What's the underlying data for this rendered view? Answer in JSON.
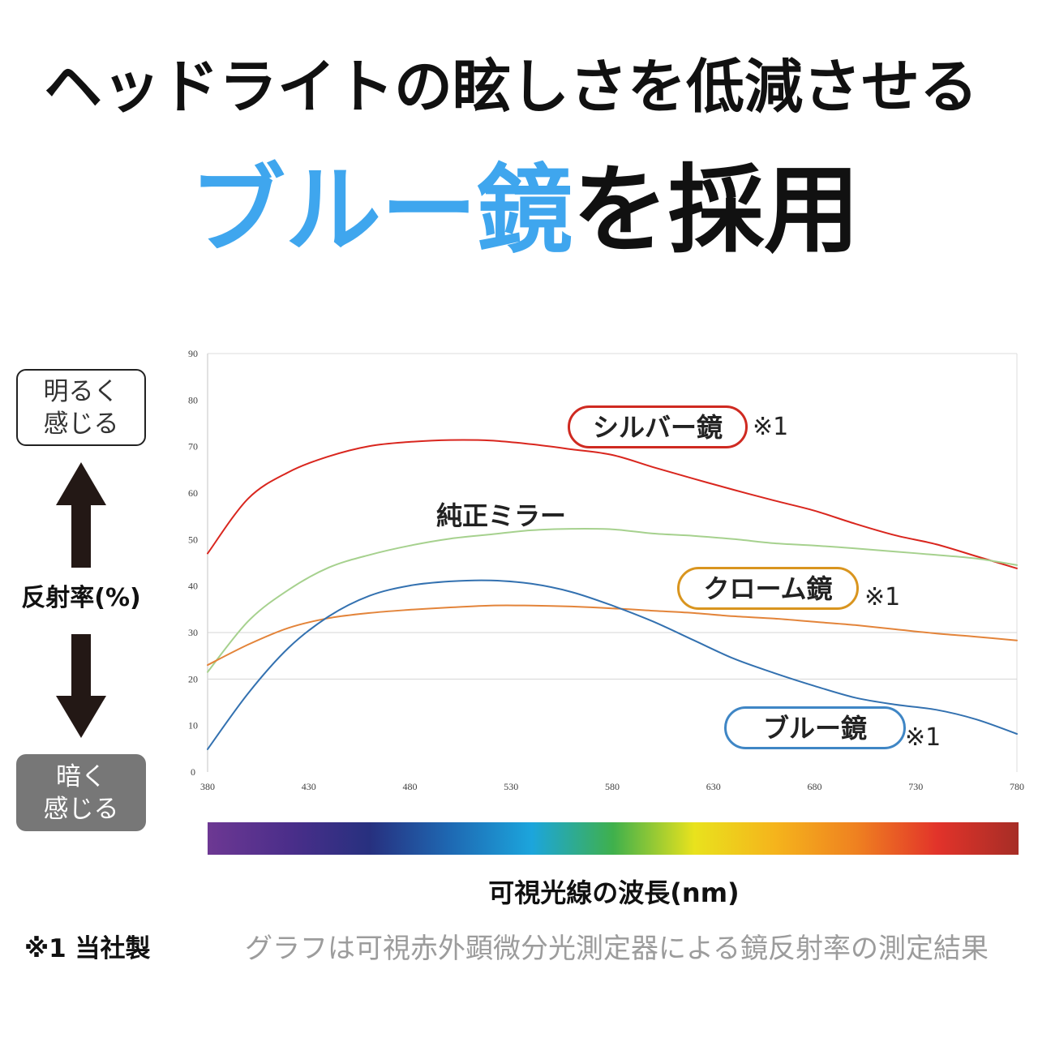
{
  "title": {
    "line1": "ヘッドライトの眩しさを低減させる",
    "line2_highlight": "ブルー鏡",
    "line2_rest": "を採用",
    "highlight_color": "#3fa6ee"
  },
  "scale": {
    "bright": [
      "明るく",
      "感じる"
    ],
    "dark": [
      "暗く",
      "感じる"
    ]
  },
  "chart_data": {
    "type": "line",
    "xlabel": "可視光線の波長(nm)",
    "ylabel": "反射率(%)",
    "xlim": [
      380,
      780
    ],
    "ylim": [
      0,
      90
    ],
    "xticks": [
      380,
      430,
      480,
      530,
      580,
      630,
      680,
      730,
      780
    ],
    "yticks": [
      0,
      10,
      20,
      30,
      40,
      50,
      60,
      70,
      80,
      90
    ],
    "grid_y": [
      20,
      30
    ],
    "x": [
      380,
      400,
      420,
      440,
      460,
      480,
      500,
      520,
      540,
      560,
      580,
      600,
      620,
      640,
      660,
      680,
      700,
      720,
      740,
      760,
      780
    ],
    "series": [
      {
        "name": "シルバー鏡",
        "note": "※1",
        "color": "#d9261e",
        "label_color": "#cf2a21",
        "values": [
          47.0,
          58.8,
          64.5,
          67.9,
          70.1,
          71.0,
          71.4,
          71.3,
          70.5,
          69.4,
          68.2,
          65.6,
          63.1,
          60.7,
          58.4,
          56.2,
          53.4,
          50.9,
          49.0,
          46.4,
          43.8
        ]
      },
      {
        "name": "純正ミラー",
        "color": "#a6d18e",
        "values": [
          21.5,
          32.4,
          39.2,
          44.0,
          46.7,
          48.7,
          50.2,
          51.1,
          52.0,
          52.3,
          52.2,
          51.3,
          50.8,
          50.1,
          49.2,
          48.7,
          48.1,
          47.4,
          46.7,
          45.9,
          44.5
        ]
      },
      {
        "name": "クローム鏡",
        "note": "※1",
        "color": "#e3843a",
        "label_color": "#d9951f",
        "values": [
          23.0,
          27.4,
          31.0,
          33.1,
          34.2,
          34.9,
          35.4,
          35.8,
          35.8,
          35.6,
          35.2,
          34.7,
          34.2,
          33.5,
          33.0,
          32.3,
          31.6,
          30.7,
          29.8,
          29.1,
          28.3
        ]
      },
      {
        "name": "ブルー鏡",
        "note": "※1",
        "color": "#3371b0",
        "label_color": "#3f86c5",
        "values": [
          4.9,
          16.9,
          26.7,
          33.5,
          37.9,
          40.1,
          41.0,
          41.2,
          40.5,
          38.7,
          35.8,
          32.4,
          28.4,
          24.4,
          21.3,
          18.5,
          16.0,
          14.5,
          13.4,
          11.3,
          8.2
        ]
      }
    ]
  },
  "spectrum_bar": {
    "colors": [
      "#6d3893",
      "#4b2e8a",
      "#27307f",
      "#1e69b3",
      "#1ca5dc",
      "#3fb04c",
      "#e9e21d",
      "#f5b41c",
      "#ef8120",
      "#e2332a",
      "#a62d26"
    ]
  },
  "footer": {
    "note": "※1 当社製",
    "caption": "グラフは可視赤外顕微分光測定器による鏡反射率の測定結果"
  }
}
